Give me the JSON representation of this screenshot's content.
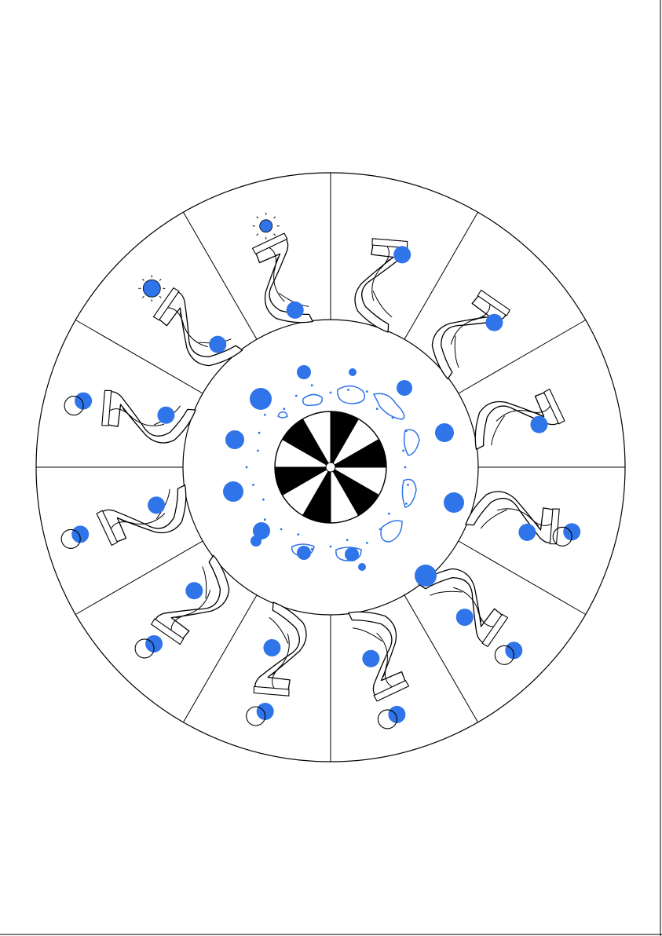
{
  "colors": {
    "ink": "#000000",
    "accent_blue": "#2f74e8",
    "background": "#ffffff",
    "wheel_fill": "#000000"
  },
  "diagram": {
    "type": "circular-strip-wheel",
    "segments": 12,
    "inner_wheel_wedges": 12,
    "icons": [
      "helix-ribbon-icon",
      "blue-blob-icon",
      "hollow-blob-icon"
    ]
  }
}
